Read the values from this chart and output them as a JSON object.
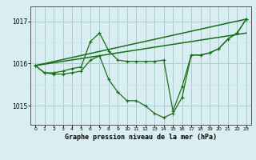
{
  "title": "Graphe pression niveau de la mer (hPa)",
  "background_color": "#d8eef0",
  "grid_color_major": "#aacdd4",
  "grid_color_minor": "#c8e4e8",
  "line_color": "#1a6e1a",
  "xlim": [
    -0.5,
    23.5
  ],
  "ylim": [
    1014.55,
    1017.35
  ],
  "yticks": [
    1015,
    1016,
    1017
  ],
  "xticks": [
    0,
    1,
    2,
    3,
    4,
    5,
    6,
    7,
    8,
    9,
    10,
    11,
    12,
    13,
    14,
    15,
    16,
    17,
    18,
    19,
    20,
    21,
    22,
    23
  ],
  "series": [
    {
      "x": [
        0,
        1,
        2,
        3,
        4,
        5,
        6,
        7,
        8,
        9,
        10,
        11,
        12,
        13,
        14,
        15,
        16,
        17,
        18,
        19,
        20,
        21,
        22,
        23
      ],
      "y": [
        1015.95,
        1015.78,
        1015.78,
        1015.82,
        1015.88,
        1015.92,
        1016.52,
        1016.72,
        1016.3,
        1016.08,
        1016.05,
        1016.05,
        1016.05,
        1016.05,
        1016.08,
        1014.88,
        1015.45,
        1016.2,
        1016.2,
        1016.25,
        1016.35,
        1016.58,
        1016.72,
        1017.05
      ],
      "marker": "+",
      "linestyle": "-",
      "linewidth": 0.9
    },
    {
      "x": [
        0,
        1,
        2,
        3,
        4,
        5,
        6,
        7,
        8,
        9,
        10,
        11,
        12,
        13,
        14,
        15,
        16,
        17,
        18,
        19,
        20,
        21,
        22,
        23
      ],
      "y": [
        1015.95,
        1015.78,
        1015.75,
        1015.75,
        1015.78,
        1015.82,
        1016.08,
        1016.18,
        1015.62,
        1015.32,
        1015.12,
        1015.12,
        1015.0,
        1014.82,
        1014.72,
        1014.82,
        1015.2,
        1016.2,
        1016.2,
        1016.25,
        1016.35,
        1016.58,
        1016.72,
        1017.05
      ],
      "marker": "+",
      "linestyle": "-",
      "linewidth": 0.9
    },
    {
      "x": [
        0,
        23
      ],
      "y": [
        1015.95,
        1017.05
      ],
      "marker": null,
      "linestyle": "-",
      "linewidth": 1.1
    },
    {
      "x": [
        0,
        23
      ],
      "y": [
        1015.95,
        1016.72
      ],
      "marker": null,
      "linestyle": "-",
      "linewidth": 1.1
    }
  ]
}
